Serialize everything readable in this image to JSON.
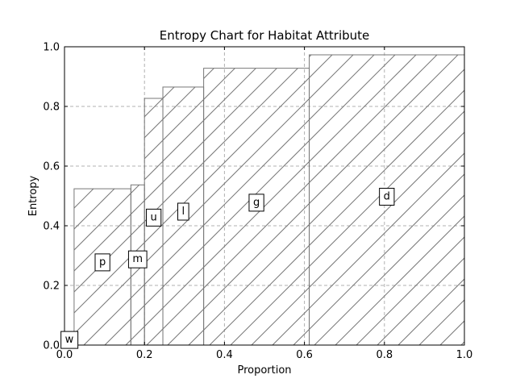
{
  "chart_data": {
    "type": "bar",
    "title": "Entropy Chart for Habitat Attribute",
    "xlabel": "Proportion",
    "ylabel": "Entropy",
    "xlim": [
      0,
      1
    ],
    "ylim": [
      0,
      1
    ],
    "xticks": [
      "0.0",
      "0.2",
      "0.4",
      "0.6",
      "0.8",
      "1.0"
    ],
    "yticks": [
      "0.0",
      "0.2",
      "0.4",
      "0.6",
      "0.8",
      "1.0"
    ],
    "grid": true,
    "grid_style": "dashed",
    "bar_style": "hatched-diagonal",
    "colors": {
      "bar_edge": "#777777",
      "hatch": "#777777",
      "grid": "#b0b0b0",
      "axes": "#000000"
    },
    "bars": [
      {
        "category": "w",
        "x0": 0.0,
        "x1": 0.024,
        "value": 0.0
      },
      {
        "category": "p",
        "x0": 0.024,
        "x1": 0.166,
        "value": 0.524
      },
      {
        "category": "m",
        "x0": 0.166,
        "x1": 0.2,
        "value": 0.537
      },
      {
        "category": "u",
        "x0": 0.2,
        "x1": 0.246,
        "value": 0.827
      },
      {
        "category": "l",
        "x0": 0.246,
        "x1": 0.348,
        "value": 0.865
      },
      {
        "category": "g",
        "x0": 0.348,
        "x1": 0.612,
        "value": 0.928
      },
      {
        "category": "d",
        "x0": 0.612,
        "x1": 1.0,
        "value": 0.973
      }
    ],
    "categories": [
      "w",
      "p",
      "m",
      "u",
      "l",
      "g",
      "d"
    ],
    "label_y": [
      0.02,
      0.28,
      0.29,
      0.43,
      0.45,
      0.48,
      0.5
    ]
  }
}
